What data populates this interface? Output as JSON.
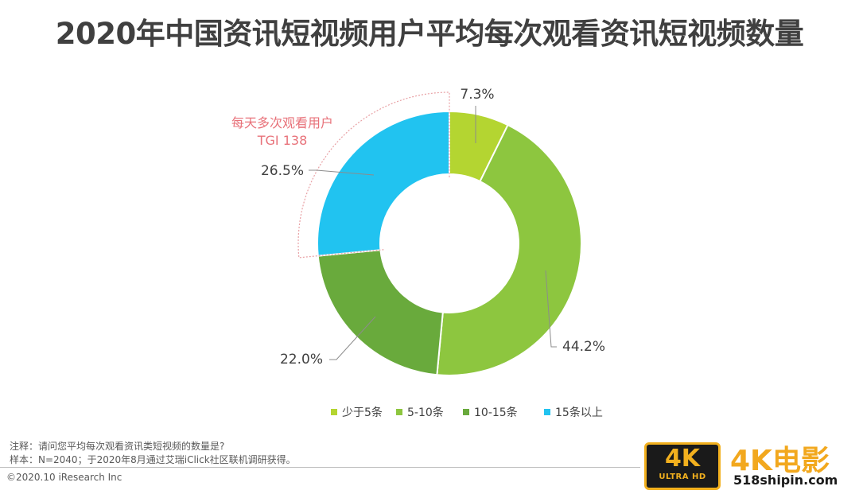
{
  "title": "2020年中国资讯短视频用户平均每次观看资讯短视频数量",
  "chart_data": {
    "type": "donut",
    "title": "2020年中国资讯短视频用户平均每次观看资讯短视频数量",
    "unit": "%",
    "series": [
      {
        "name": "少于5条",
        "value": 7.3,
        "label": "7.3%",
        "color": "#b4d531"
      },
      {
        "name": "5-10条",
        "value": 44.2,
        "label": "44.2%",
        "color": "#8dc63f"
      },
      {
        "name": "10-15条",
        "value": 22.0,
        "label": "22.0%",
        "color": "#69aa3c"
      },
      {
        "name": "15条以上",
        "value": 26.5,
        "label": "26.5%",
        "color": "#21c3f0"
      }
    ],
    "legend_position": "bottom",
    "annotation": {
      "line1": "每天多次观看用户",
      "line2": "TGI 138",
      "color": "#e8727a"
    }
  },
  "notes": {
    "line1": "注释：请问您平均每次观看资讯类短视频的数量是?",
    "line2": "样本：N=2040；于2020年8月通过艾瑞iClick社区联机调研获得。"
  },
  "copyright": "©2020.10 iResearch Inc",
  "watermark": {
    "badge_big": "4K",
    "badge_small": "ULTRA HD",
    "text": "4K电影",
    "url": "518shipin.com"
  }
}
